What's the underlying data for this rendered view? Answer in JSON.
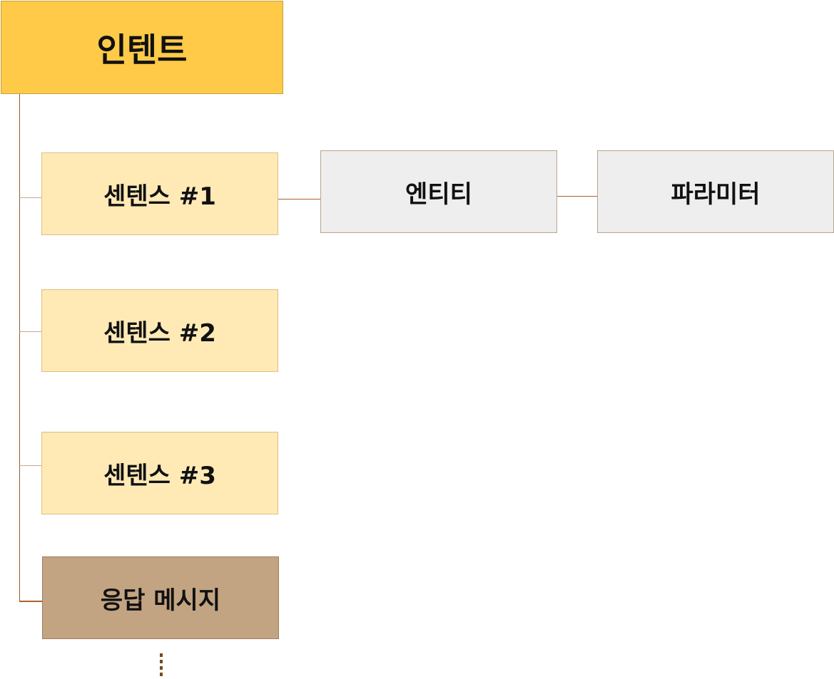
{
  "diagram": {
    "root": {
      "label": "인텐트"
    },
    "sentences": [
      {
        "label": "센텐스 #1"
      },
      {
        "label": "센텐스 #2"
      },
      {
        "label": "센텐스 #3"
      }
    ],
    "response": {
      "label": "응답 메시지"
    },
    "entity": {
      "label": "엔티티"
    },
    "parameter": {
      "label": "파라미터"
    }
  },
  "colors": {
    "root_fill": "#FFCA47",
    "sentence_fill": "#FFEAB6",
    "response_fill": "#C3A482",
    "entity_fill": "#EEEEEE",
    "connector": "#8F5B2E"
  }
}
